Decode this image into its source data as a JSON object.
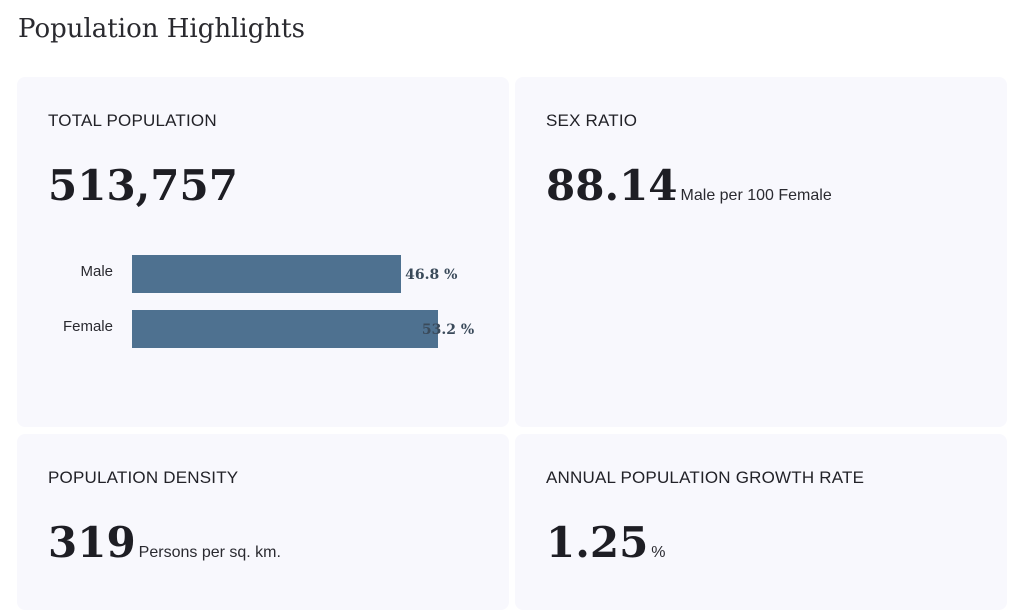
{
  "page": {
    "title": "Population Highlights"
  },
  "total_population": {
    "label": "TOTAL POPULATION",
    "value": "513,757"
  },
  "sex_ratio": {
    "label": "SEX RATIO",
    "value": "88.14",
    "unit": "Male per 100 Female"
  },
  "population_density": {
    "label": "POPULATION DENSITY",
    "value": "319",
    "unit": "Persons per sq. km."
  },
  "growth_rate": {
    "label": "ANNUAL POPULATION GROWTH RATE",
    "value": "1.25",
    "unit": "%"
  },
  "chart_data": {
    "type": "bar",
    "orientation": "horizontal",
    "categories": [
      "Male",
      "Female"
    ],
    "values": [
      46.8,
      53.2
    ],
    "value_labels": [
      "46.8 %",
      "53.2 %"
    ],
    "xlim": [
      0,
      60
    ],
    "color": "#4e7190"
  }
}
